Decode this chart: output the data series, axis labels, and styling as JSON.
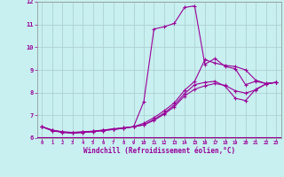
{
  "xlabel": "Windchill (Refroidissement éolien,°C)",
  "background_color": "#c8f0f0",
  "line_color": "#990099",
  "grid_color": "#b0d0d0",
  "xlim": [
    -0.5,
    23.5
  ],
  "ylim": [
    6,
    12
  ],
  "xticks": [
    0,
    1,
    2,
    3,
    4,
    5,
    6,
    7,
    8,
    9,
    10,
    11,
    12,
    13,
    14,
    15,
    16,
    17,
    18,
    19,
    20,
    21,
    22,
    23
  ],
  "yticks": [
    6,
    7,
    8,
    9,
    10,
    11,
    12
  ],
  "line1_x": [
    0,
    1,
    2,
    3,
    4,
    5,
    6,
    7,
    8,
    9,
    10,
    11,
    12,
    13,
    14,
    15,
    16,
    17,
    18,
    19,
    20,
    21,
    22,
    23
  ],
  "line1_y": [
    6.5,
    6.35,
    6.28,
    6.25,
    6.28,
    6.3,
    6.35,
    6.4,
    6.45,
    6.5,
    6.65,
    6.9,
    7.2,
    7.55,
    8.1,
    8.5,
    9.45,
    9.3,
    9.2,
    9.15,
    9.0,
    8.55,
    8.4,
    8.45
  ],
  "line2_x": [
    0,
    1,
    2,
    3,
    4,
    5,
    6,
    7,
    8,
    9,
    10,
    11,
    12,
    13,
    14,
    15,
    16,
    17,
    18,
    19,
    20,
    21,
    22,
    23
  ],
  "line2_y": [
    6.5,
    6.33,
    6.27,
    6.22,
    6.25,
    6.28,
    6.33,
    6.38,
    6.43,
    6.5,
    7.6,
    10.8,
    10.9,
    11.05,
    11.75,
    11.82,
    9.25,
    9.5,
    9.15,
    9.05,
    8.35,
    8.5,
    8.4,
    8.45
  ],
  "line3_x": [
    0,
    1,
    2,
    3,
    4,
    5,
    6,
    7,
    8,
    9,
    10,
    11,
    12,
    13,
    14,
    15,
    16,
    17,
    18,
    19,
    20,
    21,
    22,
    23
  ],
  "line3_y": [
    6.5,
    6.35,
    6.26,
    6.22,
    6.26,
    6.3,
    6.35,
    6.4,
    6.45,
    6.5,
    6.58,
    6.82,
    7.1,
    7.45,
    7.95,
    8.35,
    8.45,
    8.5,
    8.28,
    7.75,
    7.65,
    8.15,
    8.38,
    8.45
  ],
  "line4_x": [
    0,
    1,
    2,
    3,
    4,
    5,
    6,
    7,
    8,
    9,
    10,
    11,
    12,
    13,
    14,
    15,
    16,
    17,
    18,
    19,
    20,
    21,
    22,
    23
  ],
  "line4_y": [
    6.5,
    6.32,
    6.25,
    6.22,
    6.25,
    6.28,
    6.33,
    6.38,
    6.43,
    6.5,
    6.58,
    6.78,
    7.05,
    7.38,
    7.85,
    8.15,
    8.3,
    8.4,
    8.32,
    8.08,
    7.98,
    8.12,
    8.38,
    8.45
  ]
}
